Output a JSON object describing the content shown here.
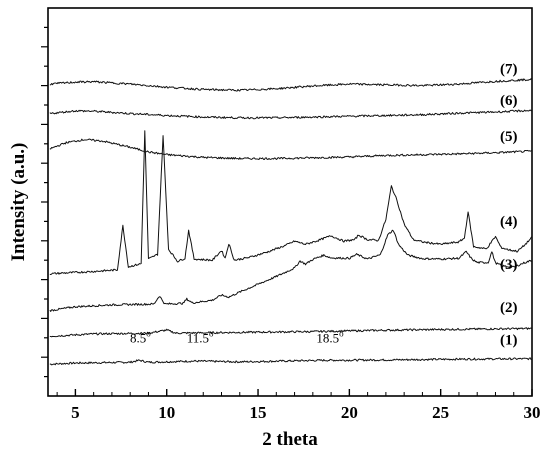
{
  "chart_data": {
    "type": "line",
    "xlabel": "2 theta",
    "ylabel": "Intensity (a.u.)",
    "xlim": [
      3.5,
      30
    ],
    "xticks": [
      "5",
      "10",
      "15",
      "20",
      "25",
      "30"
    ],
    "ylim": [
      0,
      100
    ],
    "yticks_shown": false,
    "grid": false,
    "legend": "none",
    "series_labels": [
      "(7)",
      "(6)",
      "(5)",
      "(4)",
      "(3)",
      "(2)",
      "(1)"
    ],
    "annotations": [
      {
        "text": "8.5",
        "superscript": "o",
        "x": 8.5
      },
      {
        "text": "11.5",
        "superscript": "o",
        "x": 11.5
      },
      {
        "text": "18.5",
        "superscript": "o",
        "x": 18.5
      }
    ],
    "series": [
      {
        "name": "(1)",
        "baseline": 8.2,
        "points": [
          [
            3.6,
            0
          ],
          [
            5,
            0.3
          ],
          [
            8,
            0.5
          ],
          [
            8.5,
            1.0
          ],
          [
            9,
            0.5
          ],
          [
            11.5,
            0.8
          ],
          [
            14,
            0.6
          ],
          [
            18.5,
            1.0
          ],
          [
            22,
            1.1
          ],
          [
            26,
            1.3
          ],
          [
            30,
            1.4
          ]
        ]
      },
      {
        "name": "(2)",
        "baseline": 15.4,
        "points": [
          [
            3.6,
            0
          ],
          [
            6,
            0.6
          ],
          [
            9,
            0.8
          ],
          [
            10,
            1.6
          ],
          [
            10.5,
            0.8
          ],
          [
            14,
            1.0
          ],
          [
            18,
            1.2
          ],
          [
            22.5,
            1.6
          ],
          [
            26,
            1.8
          ],
          [
            30,
            2.0
          ]
        ]
      },
      {
        "name": "(3)",
        "baseline": 22.0,
        "points": [
          [
            3.6,
            0
          ],
          [
            5,
            1.0
          ],
          [
            7,
            1.5
          ],
          [
            9.3,
            1.7
          ],
          [
            9.6,
            3.8
          ],
          [
            9.9,
            1.7
          ],
          [
            10.9,
            1.9
          ],
          [
            11.1,
            3.0
          ],
          [
            11.4,
            2.0
          ],
          [
            12.5,
            2.7
          ],
          [
            13,
            4.0
          ],
          [
            13.4,
            3.5
          ],
          [
            14,
            4.8
          ],
          [
            15,
            6.8
          ],
          [
            16,
            8.8
          ],
          [
            17,
            11.0
          ],
          [
            17.3,
            12.8
          ],
          [
            17.6,
            12.0
          ],
          [
            18,
            13.2
          ],
          [
            18.6,
            14.3
          ],
          [
            19,
            13.6
          ],
          [
            20,
            13.5
          ],
          [
            20.4,
            14.5
          ],
          [
            21,
            13.3
          ],
          [
            21.7,
            14.4
          ],
          [
            22.1,
            19.5
          ],
          [
            22.4,
            20.8
          ],
          [
            22.7,
            17.0
          ],
          [
            23.2,
            14.3
          ],
          [
            24,
            13.4
          ],
          [
            25,
            13.3
          ],
          [
            26,
            13.5
          ],
          [
            26.4,
            15.2
          ],
          [
            26.7,
            13.3
          ],
          [
            27,
            12.4
          ],
          [
            27.6,
            12.4
          ],
          [
            27.8,
            15.2
          ],
          [
            28,
            12.3
          ],
          [
            28.4,
            11.5
          ],
          [
            29,
            11.2
          ],
          [
            29.5,
            12.2
          ],
          [
            30,
            13.0
          ]
        ]
      },
      {
        "name": "(4)",
        "baseline": 31.5,
        "points": [
          [
            3.6,
            0
          ],
          [
            6,
            0.6
          ],
          [
            7.3,
            1.0
          ],
          [
            7.6,
            12.4
          ],
          [
            7.9,
            1.8
          ],
          [
            8.6,
            2.6
          ],
          [
            8.8,
            36.8
          ],
          [
            9.0,
            3.8
          ],
          [
            9.5,
            5.0
          ],
          [
            9.8,
            35.6
          ],
          [
            10.1,
            6.3
          ],
          [
            10.6,
            3.2
          ],
          [
            11.0,
            4.0
          ],
          [
            11.2,
            11.2
          ],
          [
            11.5,
            3.8
          ],
          [
            12.5,
            3.5
          ],
          [
            13.0,
            6.0
          ],
          [
            13.2,
            4.0
          ],
          [
            13.4,
            7.8
          ],
          [
            13.7,
            3.5
          ],
          [
            14.5,
            4.2
          ],
          [
            15.5,
            5.6
          ],
          [
            16.5,
            7.3
          ],
          [
            17.0,
            8.4
          ],
          [
            17.3,
            8.0
          ],
          [
            17.6,
            7.6
          ],
          [
            18.3,
            8.6
          ],
          [
            19.0,
            9.8
          ],
          [
            19.7,
            8.4
          ],
          [
            20.3,
            8.8
          ],
          [
            20.5,
            10.0
          ],
          [
            21.0,
            8.8
          ],
          [
            21.6,
            8.6
          ],
          [
            22.0,
            14.0
          ],
          [
            22.3,
            22.6
          ],
          [
            22.6,
            19.0
          ],
          [
            23.0,
            12.8
          ],
          [
            23.5,
            8.8
          ],
          [
            24.0,
            8.2
          ],
          [
            25.0,
            7.6
          ],
          [
            26.0,
            8.2
          ],
          [
            26.3,
            9.2
          ],
          [
            26.5,
            16.0
          ],
          [
            26.8,
            7.0
          ],
          [
            27.5,
            6.4
          ],
          [
            28.0,
            9.6
          ],
          [
            28.3,
            6.8
          ],
          [
            28.7,
            6.2
          ],
          [
            29.2,
            5.8
          ],
          [
            29.6,
            7.4
          ],
          [
            30.0,
            9.4
          ]
        ]
      },
      {
        "name": "(5)",
        "baseline": 63.7,
        "points": [
          [
            3.6,
            0
          ],
          [
            4.5,
            1.6
          ],
          [
            5.5,
            2.4
          ],
          [
            6.5,
            2.0
          ],
          [
            8,
            0.4
          ],
          [
            9,
            -0.8
          ],
          [
            10,
            -1.5
          ],
          [
            12,
            -2.2
          ],
          [
            14,
            -2.5
          ],
          [
            16,
            -2.5
          ],
          [
            18,
            -2.3
          ],
          [
            20,
            -2.1
          ],
          [
            22,
            -1.7
          ],
          [
            24,
            -1.5
          ],
          [
            26,
            -1.3
          ],
          [
            28,
            -1.0
          ],
          [
            30,
            -0.6
          ]
        ]
      },
      {
        "name": "(6)",
        "baseline": 72.8,
        "points": [
          [
            3.6,
            0
          ],
          [
            5,
            0.7
          ],
          [
            6,
            0.6
          ],
          [
            8,
            0.0
          ],
          [
            10,
            -0.5
          ],
          [
            12,
            -0.9
          ],
          [
            14,
            -1.1
          ],
          [
            16,
            -1.1
          ],
          [
            18,
            -0.9
          ],
          [
            20,
            -0.7
          ],
          [
            22,
            -0.5
          ],
          [
            24,
            -0.3
          ],
          [
            26,
            0.1
          ],
          [
            28,
            0.4
          ],
          [
            30,
            0.8
          ]
        ]
      },
      {
        "name": "(7)",
        "baseline": 80.4,
        "points": [
          [
            3.6,
            0
          ],
          [
            5,
            0.5
          ],
          [
            6,
            0.6
          ],
          [
            8,
            0.0
          ],
          [
            10,
            -0.8
          ],
          [
            12,
            -1.4
          ],
          [
            14,
            -1.6
          ],
          [
            16,
            -1.2
          ],
          [
            18,
            -0.5
          ],
          [
            20,
            0.0
          ],
          [
            22,
            -0.2
          ],
          [
            24,
            -0.4
          ],
          [
            26,
            0.0
          ],
          [
            28,
            0.7
          ],
          [
            30,
            1.2
          ]
        ]
      }
    ]
  }
}
